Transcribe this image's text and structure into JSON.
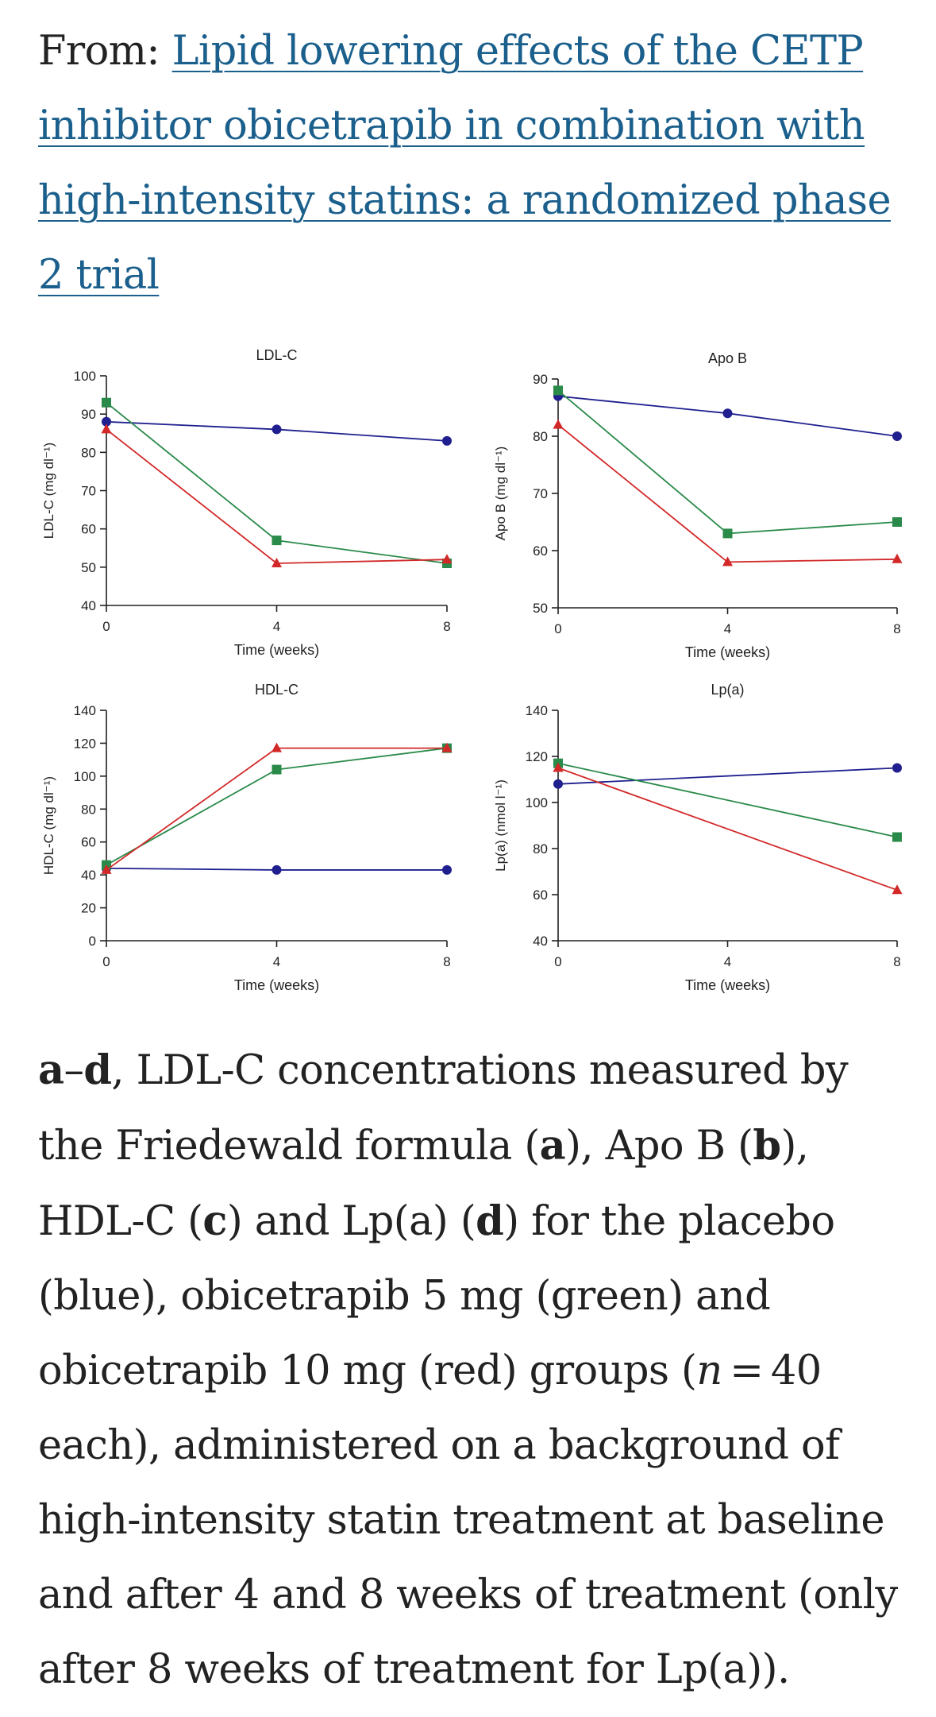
{
  "header": {
    "from_label": "From: ",
    "article_title": "Lipid lowering effects of the CETP inhibitor obicetrapib in combination with high-intensity statins: a randomized phase 2 trial"
  },
  "colors": {
    "placebo": "#1f1f8f",
    "obicetrapib_5mg": "#2a8a4a",
    "obicetrapib_10mg": "#d22828",
    "link": "#1b5f8c"
  },
  "chart_data": [
    {
      "type": "line",
      "title": "LDL-C",
      "xlabel": "Time (weeks)",
      "ylabel": "LDL-C (mg dl⁻¹)",
      "x": [
        0,
        4,
        8
      ],
      "xticks": [
        0,
        4,
        8
      ],
      "xlim": [
        0,
        8
      ],
      "ylim": [
        40,
        100
      ],
      "yticks": [
        40,
        50,
        60,
        70,
        80,
        90,
        100
      ],
      "grid": false,
      "series": [
        {
          "color": "#1f1f8f",
          "marker": "circle",
          "values": [
            88,
            86,
            83
          ]
        },
        {
          "color": "#2a8a4a",
          "marker": "square",
          "values": [
            93,
            57,
            51
          ]
        },
        {
          "color": "#d22828",
          "marker": "triangle",
          "values": [
            86,
            51,
            52
          ]
        }
      ]
    },
    {
      "type": "line",
      "title": "Apo B",
      "xlabel": "Time (weeks)",
      "ylabel": "Apo B (mg dl⁻¹)",
      "x": [
        0,
        4,
        8
      ],
      "xticks": [
        0,
        4,
        8
      ],
      "xlim": [
        0,
        8
      ],
      "ylim": [
        50,
        90
      ],
      "yticks": [
        50,
        60,
        70,
        80,
        90
      ],
      "grid": false,
      "series": [
        {
          "color": "#1f1f8f",
          "marker": "circle",
          "values": [
            87,
            84,
            80
          ]
        },
        {
          "color": "#2a8a4a",
          "marker": "square",
          "values": [
            88,
            63,
            65
          ]
        },
        {
          "color": "#d22828",
          "marker": "triangle",
          "values": [
            82,
            58,
            58.5
          ]
        }
      ]
    },
    {
      "type": "line",
      "title": "HDL-C",
      "xlabel": "Time (weeks)",
      "ylabel": "HDL-C (mg dl⁻¹)",
      "x": [
        0,
        4,
        8
      ],
      "xticks": [
        0,
        4,
        8
      ],
      "xlim": [
        0,
        8
      ],
      "ylim": [
        0,
        140
      ],
      "yticks": [
        0,
        20,
        40,
        60,
        80,
        100,
        120,
        140
      ],
      "grid": false,
      "series": [
        {
          "color": "#1f1f8f",
          "marker": "circle",
          "values": [
            44,
            43,
            43
          ]
        },
        {
          "color": "#2a8a4a",
          "marker": "square",
          "values": [
            46,
            104,
            117
          ]
        },
        {
          "color": "#d22828",
          "marker": "triangle",
          "values": [
            43,
            117,
            117
          ]
        }
      ]
    },
    {
      "type": "line",
      "title": "Lp(a)",
      "xlabel": "Time (weeks)",
      "ylabel": "Lp(a) (nmol l⁻¹)",
      "x": [
        0,
        8
      ],
      "xticks": [
        0,
        4,
        8
      ],
      "xlim": [
        0,
        8
      ],
      "ylim": [
        40,
        140
      ],
      "yticks": [
        40,
        60,
        80,
        100,
        120,
        140
      ],
      "grid": false,
      "series": [
        {
          "color": "#1f1f8f",
          "marker": "circle",
          "values": [
            108,
            115
          ]
        },
        {
          "color": "#2a8a4a",
          "marker": "square",
          "values": [
            117,
            85
          ]
        },
        {
          "color": "#d22828",
          "marker": "triangle",
          "values": [
            115,
            62
          ]
        }
      ]
    }
  ],
  "caption": {
    "panels_bold": "a",
    "dash": "–",
    "panel_d_bold": "d",
    "t1": ", LDL-C concentrations measured by the Friedewald formula (",
    "ba": "a",
    "t2": "), Apo B (",
    "bb": "b",
    "t3": "), HDL-C (",
    "bc": "c",
    "t4": ") and Lp(a) (",
    "bd": "d",
    "t5": ") for the placebo (blue), obicetrapib 5 mg (green) and obicetrapib 10 mg (red) groups (",
    "n": "n",
    "t6": " = 40 each), administered on a background of high-intensity statin treatment at baseline and after 4 and 8 weeks of treatment (only after 8 weeks of treatment for Lp(a))."
  }
}
